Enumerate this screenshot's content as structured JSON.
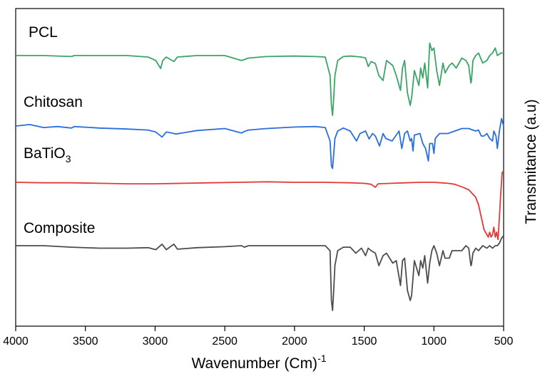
{
  "chart_data": {
    "type": "line",
    "xlabel": "Wavenumber (Cm)",
    "xlabel_sup": "-1",
    "ylabel": "Transmitance (a.u)",
    "xlim": [
      4000,
      500
    ],
    "x_reversed": true,
    "x_ticks": [
      4000,
      3500,
      3000,
      2500,
      2000,
      1500,
      1000,
      500
    ],
    "y_ticks_shown": false,
    "grid": false,
    "legend": "inline labels above each trace",
    "series": [
      {
        "name": "PCL",
        "color": "#3aa565",
        "x": [
          4000,
          3800,
          3600,
          3580,
          3400,
          3200,
          3050,
          2995,
          2960,
          2945,
          2920,
          2890,
          2865,
          2840,
          2700,
          2500,
          2380,
          2360,
          2330,
          2200,
          2000,
          1850,
          1780,
          1745,
          1735,
          1727,
          1720,
          1710,
          1690,
          1650,
          1600,
          1560,
          1520,
          1490,
          1471,
          1450,
          1420,
          1395,
          1365,
          1340,
          1295,
          1270,
          1240,
          1225,
          1210,
          1190,
          1170,
          1160,
          1140,
          1108,
          1095,
          1080,
          1066,
          1045,
          1030,
          1015,
          1000,
          980,
          960,
          935,
          920,
          890,
          870,
          840,
          800,
          770,
          750,
          735,
          731,
          720,
          700,
          680,
          650,
          620,
          600,
          580,
          560,
          545,
          520,
          500
        ],
        "y": [
          0.0,
          0.0,
          -0.2,
          0.0,
          0.0,
          0.0,
          -0.3,
          -1.0,
          -2.6,
          -1.0,
          -0.3,
          -0.8,
          -1.2,
          -0.3,
          0.0,
          0.0,
          -1.0,
          -0.8,
          -0.5,
          -0.2,
          -0.1,
          -0.2,
          -0.3,
          -4.0,
          -10.0,
          -12.0,
          -9.0,
          -4.0,
          -1.0,
          -0.2,
          -0.1,
          -0.2,
          -0.3,
          -0.5,
          -2.2,
          -1.2,
          -1.6,
          -4.0,
          -5.0,
          -1.0,
          -2.0,
          -4.0,
          -7.0,
          -2.5,
          -1.0,
          -7.5,
          -10.0,
          -8.5,
          -3.0,
          -6.0,
          -2.5,
          -4.5,
          -1.5,
          -6.5,
          2.5,
          1.0,
          1.5,
          -3.0,
          -6.0,
          -1.5,
          -3.5,
          -2.0,
          -1.5,
          -2.5,
          -0.5,
          -1.0,
          -2.0,
          -5.5,
          -5.0,
          -1.0,
          0.0,
          0.5,
          -1.5,
          -1.0,
          0.0,
          0.5,
          1.5,
          0.0,
          0.5,
          0.5
        ]
      },
      {
        "name": "Chitosan",
        "color": "#2a6fdb",
        "x": [
          4000,
          3900,
          3800,
          3700,
          3600,
          3580,
          3400,
          3200,
          3050,
          2995,
          2950,
          2920,
          2880,
          2850,
          2700,
          2500,
          2380,
          2360,
          2330,
          2200,
          2000,
          1850,
          1780,
          1745,
          1735,
          1727,
          1720,
          1710,
          1690,
          1650,
          1600,
          1555,
          1530,
          1490,
          1465,
          1440,
          1420,
          1390,
          1365,
          1345,
          1300,
          1250,
          1230,
          1210,
          1190,
          1170,
          1160,
          1150,
          1140,
          1100,
          1080,
          1060,
          1040,
          1030,
          1010,
          1000,
          990,
          960,
          900,
          850,
          800,
          750,
          700,
          680,
          660,
          640,
          620,
          600,
          580,
          570,
          555,
          545,
          530,
          515,
          500
        ],
        "y": [
          0.0,
          0.3,
          -0.3,
          -0.1,
          -0.4,
          -0.1,
          -0.4,
          -0.6,
          -0.8,
          -1.2,
          -2.2,
          -1.2,
          -1.4,
          -1.6,
          -0.9,
          -0.5,
          -1.4,
          -1.1,
          -0.8,
          -0.5,
          -0.2,
          -0.1,
          -0.3,
          -3.0,
          -8.0,
          -8.5,
          -6.0,
          -2.5,
          -1.0,
          -0.4,
          -1.0,
          -3.0,
          -1.5,
          -1.0,
          -2.6,
          -1.5,
          -2.0,
          -4.0,
          -1.5,
          -2.5,
          -3.0,
          -1.0,
          -4.5,
          -1.5,
          -1.0,
          -3.0,
          -2.5,
          -5.0,
          -1.8,
          -1.5,
          -3.5,
          -4.5,
          -7.0,
          -3.5,
          -3.5,
          -5.5,
          -2.5,
          -1.5,
          -1.5,
          -1.0,
          -0.5,
          -0.5,
          -1.0,
          -0.8,
          -2.0,
          -2.0,
          -1.5,
          -2.5,
          -3.0,
          -1.0,
          -2.0,
          -4.5,
          -1.0,
          1.5,
          0.0
        ]
      },
      {
        "name": "BaTiO3",
        "name_base": "BaTiO",
        "name_sub": "3",
        "color": "#e23a3a",
        "x": [
          4000,
          3800,
          3600,
          3400,
          3200,
          3000,
          2800,
          2600,
          2400,
          2200,
          2000,
          1800,
          1600,
          1500,
          1450,
          1420,
          1400,
          1300,
          1200,
          1100,
          1000,
          950,
          900,
          850,
          800,
          750,
          700,
          680,
          660,
          640,
          620,
          610,
          600,
          590,
          580,
          570,
          560,
          550,
          540,
          530,
          520,
          510,
          500
        ],
        "y": [
          0.0,
          -0.1,
          -0.1,
          -0.2,
          -0.3,
          -0.3,
          -0.2,
          -0.1,
          0.0,
          0.1,
          0.0,
          0.0,
          -0.1,
          -0.2,
          -0.4,
          -1.0,
          -0.3,
          -0.2,
          -0.1,
          0.0,
          0.0,
          -0.1,
          -0.2,
          -0.4,
          -0.9,
          -1.5,
          -3.0,
          -4.5,
          -7.0,
          -9.5,
          -10.5,
          -11.0,
          -10.0,
          -11.0,
          -10.5,
          -9.0,
          -11.0,
          -10.0,
          -11.5,
          -7.0,
          -2.0,
          2.0,
          2.2
        ]
      },
      {
        "name": "Composite",
        "color": "#4d4d4d",
        "x": [
          4000,
          3800,
          3600,
          3400,
          3200,
          3050,
          2995,
          2950,
          2920,
          2890,
          2865,
          2840,
          2700,
          2500,
          2380,
          2360,
          2330,
          2200,
          2000,
          1850,
          1780,
          1745,
          1735,
          1727,
          1720,
          1710,
          1690,
          1650,
          1600,
          1560,
          1520,
          1490,
          1471,
          1450,
          1420,
          1395,
          1365,
          1340,
          1295,
          1270,
          1240,
          1225,
          1210,
          1190,
          1170,
          1160,
          1140,
          1108,
          1095,
          1080,
          1066,
          1045,
          1030,
          1015,
          1000,
          980,
          960,
          935,
          920,
          890,
          870,
          840,
          800,
          770,
          750,
          735,
          731,
          720,
          700,
          680,
          650,
          620,
          600,
          580,
          560,
          545,
          530,
          515,
          500
        ],
        "y": [
          0.0,
          0.0,
          -0.3,
          -0.5,
          -0.5,
          -0.4,
          -0.8,
          0.3,
          -0.8,
          -0.2,
          0.3,
          -0.7,
          -0.4,
          -0.2,
          0.0,
          -0.3,
          0.0,
          0.0,
          0.0,
          0.0,
          0.0,
          -1.0,
          -11.0,
          -13.0,
          -9.5,
          -4.0,
          -1.0,
          -0.3,
          -0.3,
          -1.5,
          -0.5,
          -2.0,
          -0.5,
          -1.0,
          -1.5,
          -4.0,
          -2.0,
          -1.5,
          -3.5,
          -3.0,
          -8.0,
          -3.0,
          -2.5,
          -9.0,
          -11.0,
          -10.0,
          -3.0,
          -6.0,
          -3.0,
          -4.5,
          -2.0,
          -7.5,
          -3.5,
          -1.0,
          0.0,
          -1.5,
          -4.0,
          -1.0,
          -2.5,
          -2.5,
          -1.0,
          -1.0,
          -1.0,
          0.0,
          -0.5,
          -4.0,
          -3.8,
          -1.5,
          -0.5,
          -1.0,
          0.0,
          -0.5,
          0.0,
          -0.5,
          0.0,
          0.0,
          0.5,
          1.5,
          2.0
        ]
      }
    ]
  }
}
